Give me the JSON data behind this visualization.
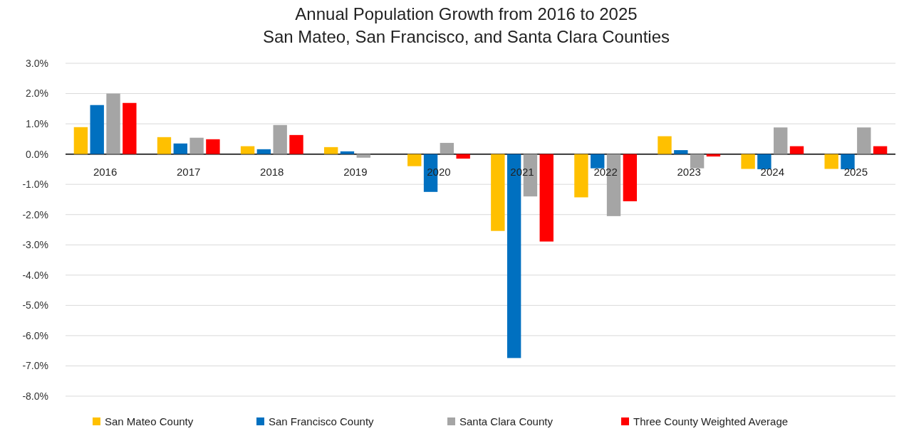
{
  "chart_data": {
    "type": "bar",
    "title": "Annual Population Growth from 2016 to 2025\nSan Mateo, San Francisco, and Santa Clara Counties",
    "categories": [
      "2016",
      "2017",
      "2018",
      "2019",
      "2020",
      "2021",
      "2022",
      "2023",
      "2024",
      "2025"
    ],
    "series": [
      {
        "name": "San Mateo County",
        "color": "#ffc000",
        "values": [
          0.89,
          0.56,
          0.26,
          0.23,
          -0.4,
          -2.54,
          -1.43,
          0.59,
          -0.49,
          -0.49
        ]
      },
      {
        "name": "San Francisco County",
        "color": "#0070c0",
        "values": [
          1.62,
          0.35,
          0.16,
          0.09,
          -1.25,
          -6.74,
          -0.47,
          0.13,
          -0.5,
          -0.5
        ]
      },
      {
        "name": "Santa Clara County",
        "color": "#a5a5a5",
        "values": [
          2.0,
          0.54,
          0.96,
          -0.12,
          0.37,
          -1.4,
          -2.05,
          -0.47,
          0.88,
          0.88
        ]
      },
      {
        "name": "Three County Weighted Average",
        "color": "#ff0000",
        "values": [
          1.69,
          0.49,
          0.63,
          0.0,
          -0.15,
          -2.89,
          -1.56,
          -0.08,
          0.26,
          0.26
        ]
      }
    ],
    "ylim": [
      -8,
      3
    ],
    "yticks": [
      {
        "value": 3,
        "label": "3.0%"
      },
      {
        "value": 2,
        "label": "2.0%"
      },
      {
        "value": 1,
        "label": "1.0%"
      },
      {
        "value": 0,
        "label": "0.0%"
      },
      {
        "value": -1,
        "label": "-1.0%"
      },
      {
        "value": -2,
        "label": "-2.0%"
      },
      {
        "value": -3,
        "label": "-3.0%"
      },
      {
        "value": -4,
        "label": "-4.0%"
      },
      {
        "value": -5,
        "label": "-5.0%"
      },
      {
        "value": -6,
        "label": "-6.0%"
      },
      {
        "value": -7,
        "label": "-7.0%"
      },
      {
        "value": -8,
        "label": "-8.0%"
      }
    ],
    "grid": "y",
    "legend": "bottom"
  }
}
